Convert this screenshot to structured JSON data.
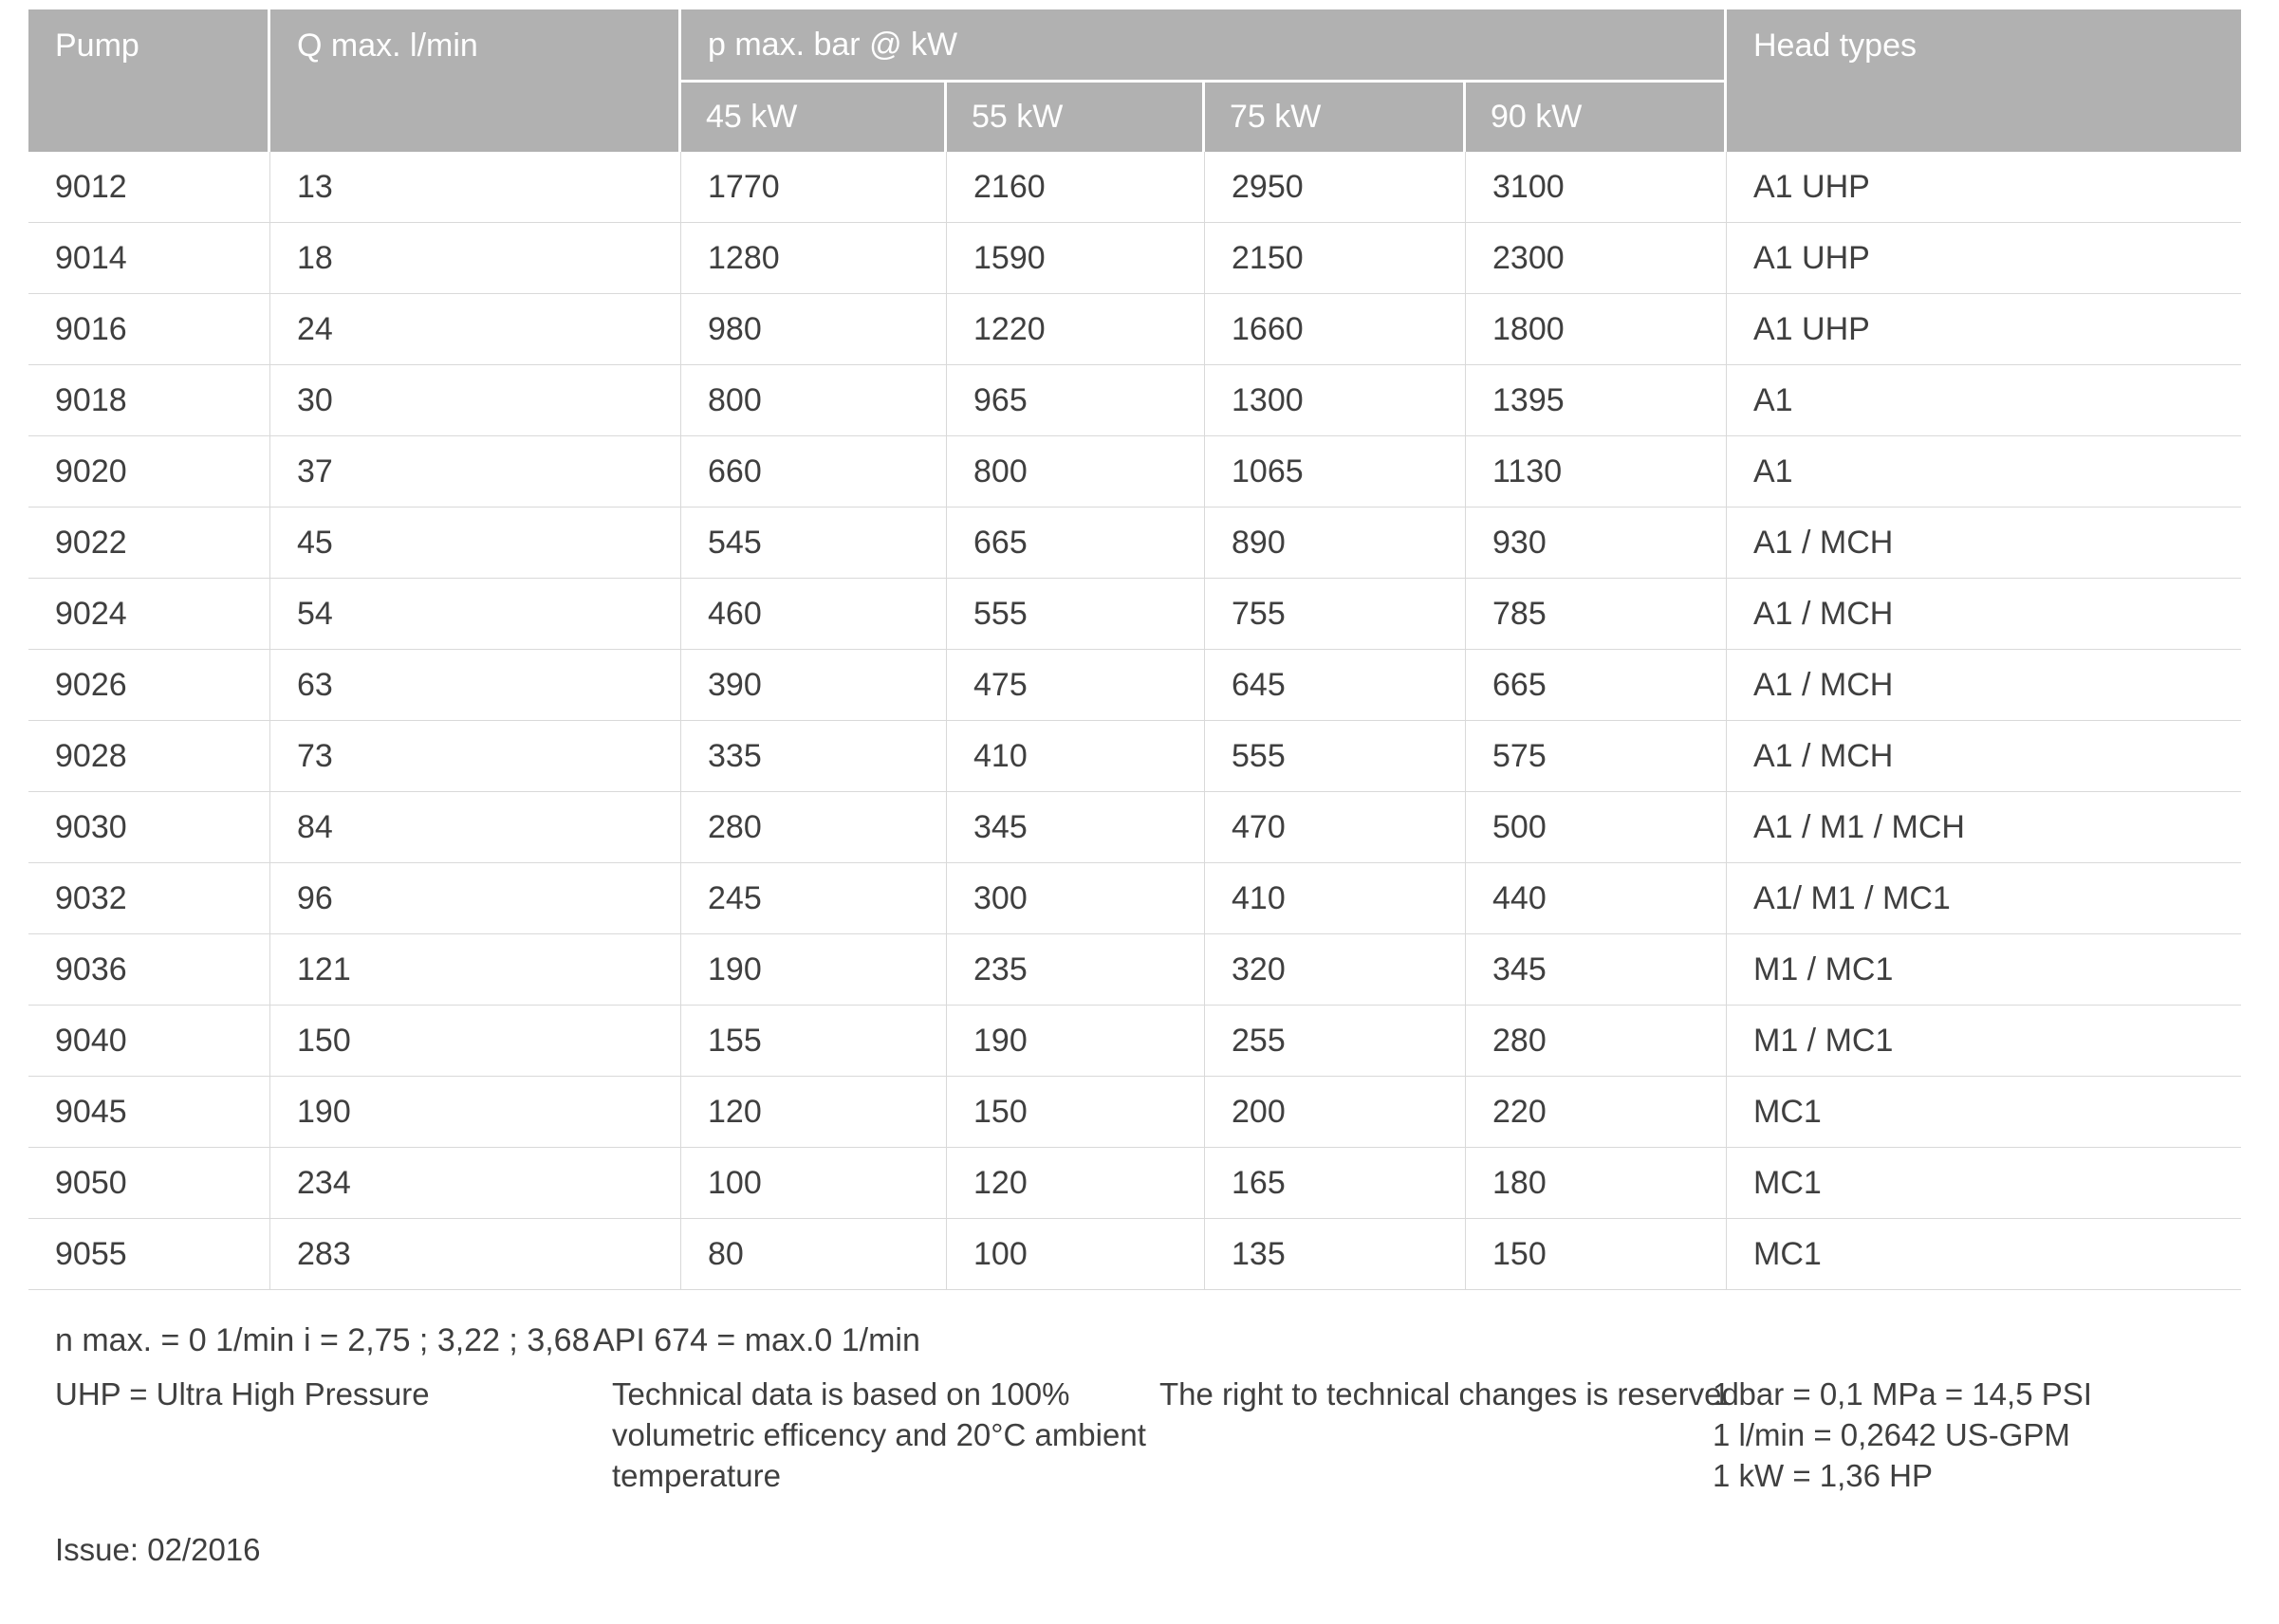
{
  "colors": {
    "header_bg": "#b1b1b1",
    "header_text": "#ffffff",
    "body_text": "#3f3f3f",
    "divider": "#d9d9d9"
  },
  "table": {
    "header": {
      "pump": "Pump",
      "q_max": "Q max. l/min",
      "p_max_group": "p max. bar @ kW",
      "kw_cols": [
        "45 kW",
        "55 kW",
        "75 kW",
        "90 kW"
      ],
      "head_types": "Head types"
    },
    "rows": [
      {
        "pump": "9012",
        "q_max": "13",
        "p_45": "1770",
        "p_55": "2160",
        "p_75": "2950",
        "p_90": "3100",
        "head": "A1 UHP"
      },
      {
        "pump": "9014",
        "q_max": "18",
        "p_45": "1280",
        "p_55": "1590",
        "p_75": "2150",
        "p_90": "2300",
        "head": "A1 UHP"
      },
      {
        "pump": "9016",
        "q_max": "24",
        "p_45": "980",
        "p_55": "1220",
        "p_75": "1660",
        "p_90": "1800",
        "head": "A1 UHP"
      },
      {
        "pump": "9018",
        "q_max": "30",
        "p_45": "800",
        "p_55": "965",
        "p_75": "1300",
        "p_90": "1395",
        "head": "A1"
      },
      {
        "pump": "9020",
        "q_max": "37",
        "p_45": "660",
        "p_55": "800",
        "p_75": "1065",
        "p_90": "1130",
        "head": "A1"
      },
      {
        "pump": "9022",
        "q_max": "45",
        "p_45": "545",
        "p_55": "665",
        "p_75": "890",
        "p_90": "930",
        "head": "A1 / MCH"
      },
      {
        "pump": "9024",
        "q_max": "54",
        "p_45": "460",
        "p_55": "555",
        "p_75": "755",
        "p_90": "785",
        "head": "A1 / MCH"
      },
      {
        "pump": "9026",
        "q_max": "63",
        "p_45": "390",
        "p_55": "475",
        "p_75": "645",
        "p_90": "665",
        "head": "A1 / MCH"
      },
      {
        "pump": "9028",
        "q_max": "73",
        "p_45": "335",
        "p_55": "410",
        "p_75": "555",
        "p_90": "575",
        "head": "A1 / MCH"
      },
      {
        "pump": "9030",
        "q_max": "84",
        "p_45": "280",
        "p_55": "345",
        "p_75": "470",
        "p_90": "500",
        "head": "A1 / M1 / MCH"
      },
      {
        "pump": "9032",
        "q_max": "96",
        "p_45": "245",
        "p_55": "300",
        "p_75": "410",
        "p_90": "440",
        "head": "A1/ M1 / MC1"
      },
      {
        "pump": "9036",
        "q_max": "121",
        "p_45": "190",
        "p_55": "235",
        "p_75": "320",
        "p_90": "345",
        "head": "M1 / MC1"
      },
      {
        "pump": "9040",
        "q_max": "150",
        "p_45": "155",
        "p_55": "190",
        "p_75": "255",
        "p_90": "280",
        "head": "M1 / MC1"
      },
      {
        "pump": "9045",
        "q_max": "190",
        "p_45": "120",
        "p_55": "150",
        "p_75": "200",
        "p_90": "220",
        "head": "MC1"
      },
      {
        "pump": "9050",
        "q_max": "234",
        "p_45": "100",
        "p_55": "120",
        "p_75": "165",
        "p_90": "180",
        "head": "MC1"
      },
      {
        "pump": "9055",
        "q_max": "283",
        "p_45": "80",
        "p_55": "100",
        "p_75": "135",
        "p_90": "150",
        "head": "MC1"
      }
    ]
  },
  "footnotes": {
    "n_max": "n max. = 0 1/min",
    "ratio": "i = 2,75 ; 3,22 ; 3,68",
    "api": "API 674 = max.0 1/min",
    "uhp": "UHP = Ultra High Pressure",
    "tech_note_lines": [
      "Technical data is based on 100%",
      "volumetric efficency and 20°C ambient",
      "temperature"
    ],
    "rights": "The right to technical changes is reserved",
    "conversions": [
      "1 bar = 0,1 MPa = 14,5 PSI",
      "1 l/min = 0,2642 US-GPM",
      "1 kW = 1,36 HP"
    ],
    "issue": "Issue: 02/2016"
  }
}
